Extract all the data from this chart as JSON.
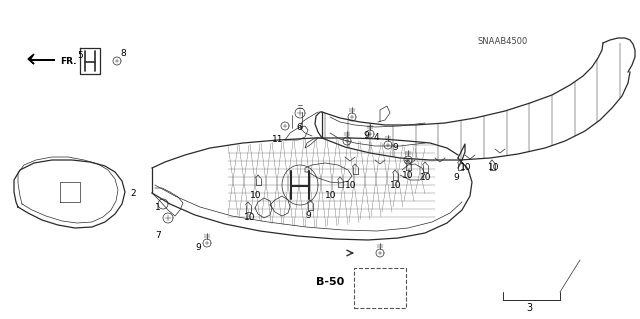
{
  "bg_color": "#ffffff",
  "fig_width": 6.4,
  "fig_height": 3.19,
  "line_color": "#2a2a2a",
  "text_color": "#000000",
  "label_fontsize": 6.5,
  "snaab_text": "SNAAB4500",
  "b50_text": "B-50"
}
